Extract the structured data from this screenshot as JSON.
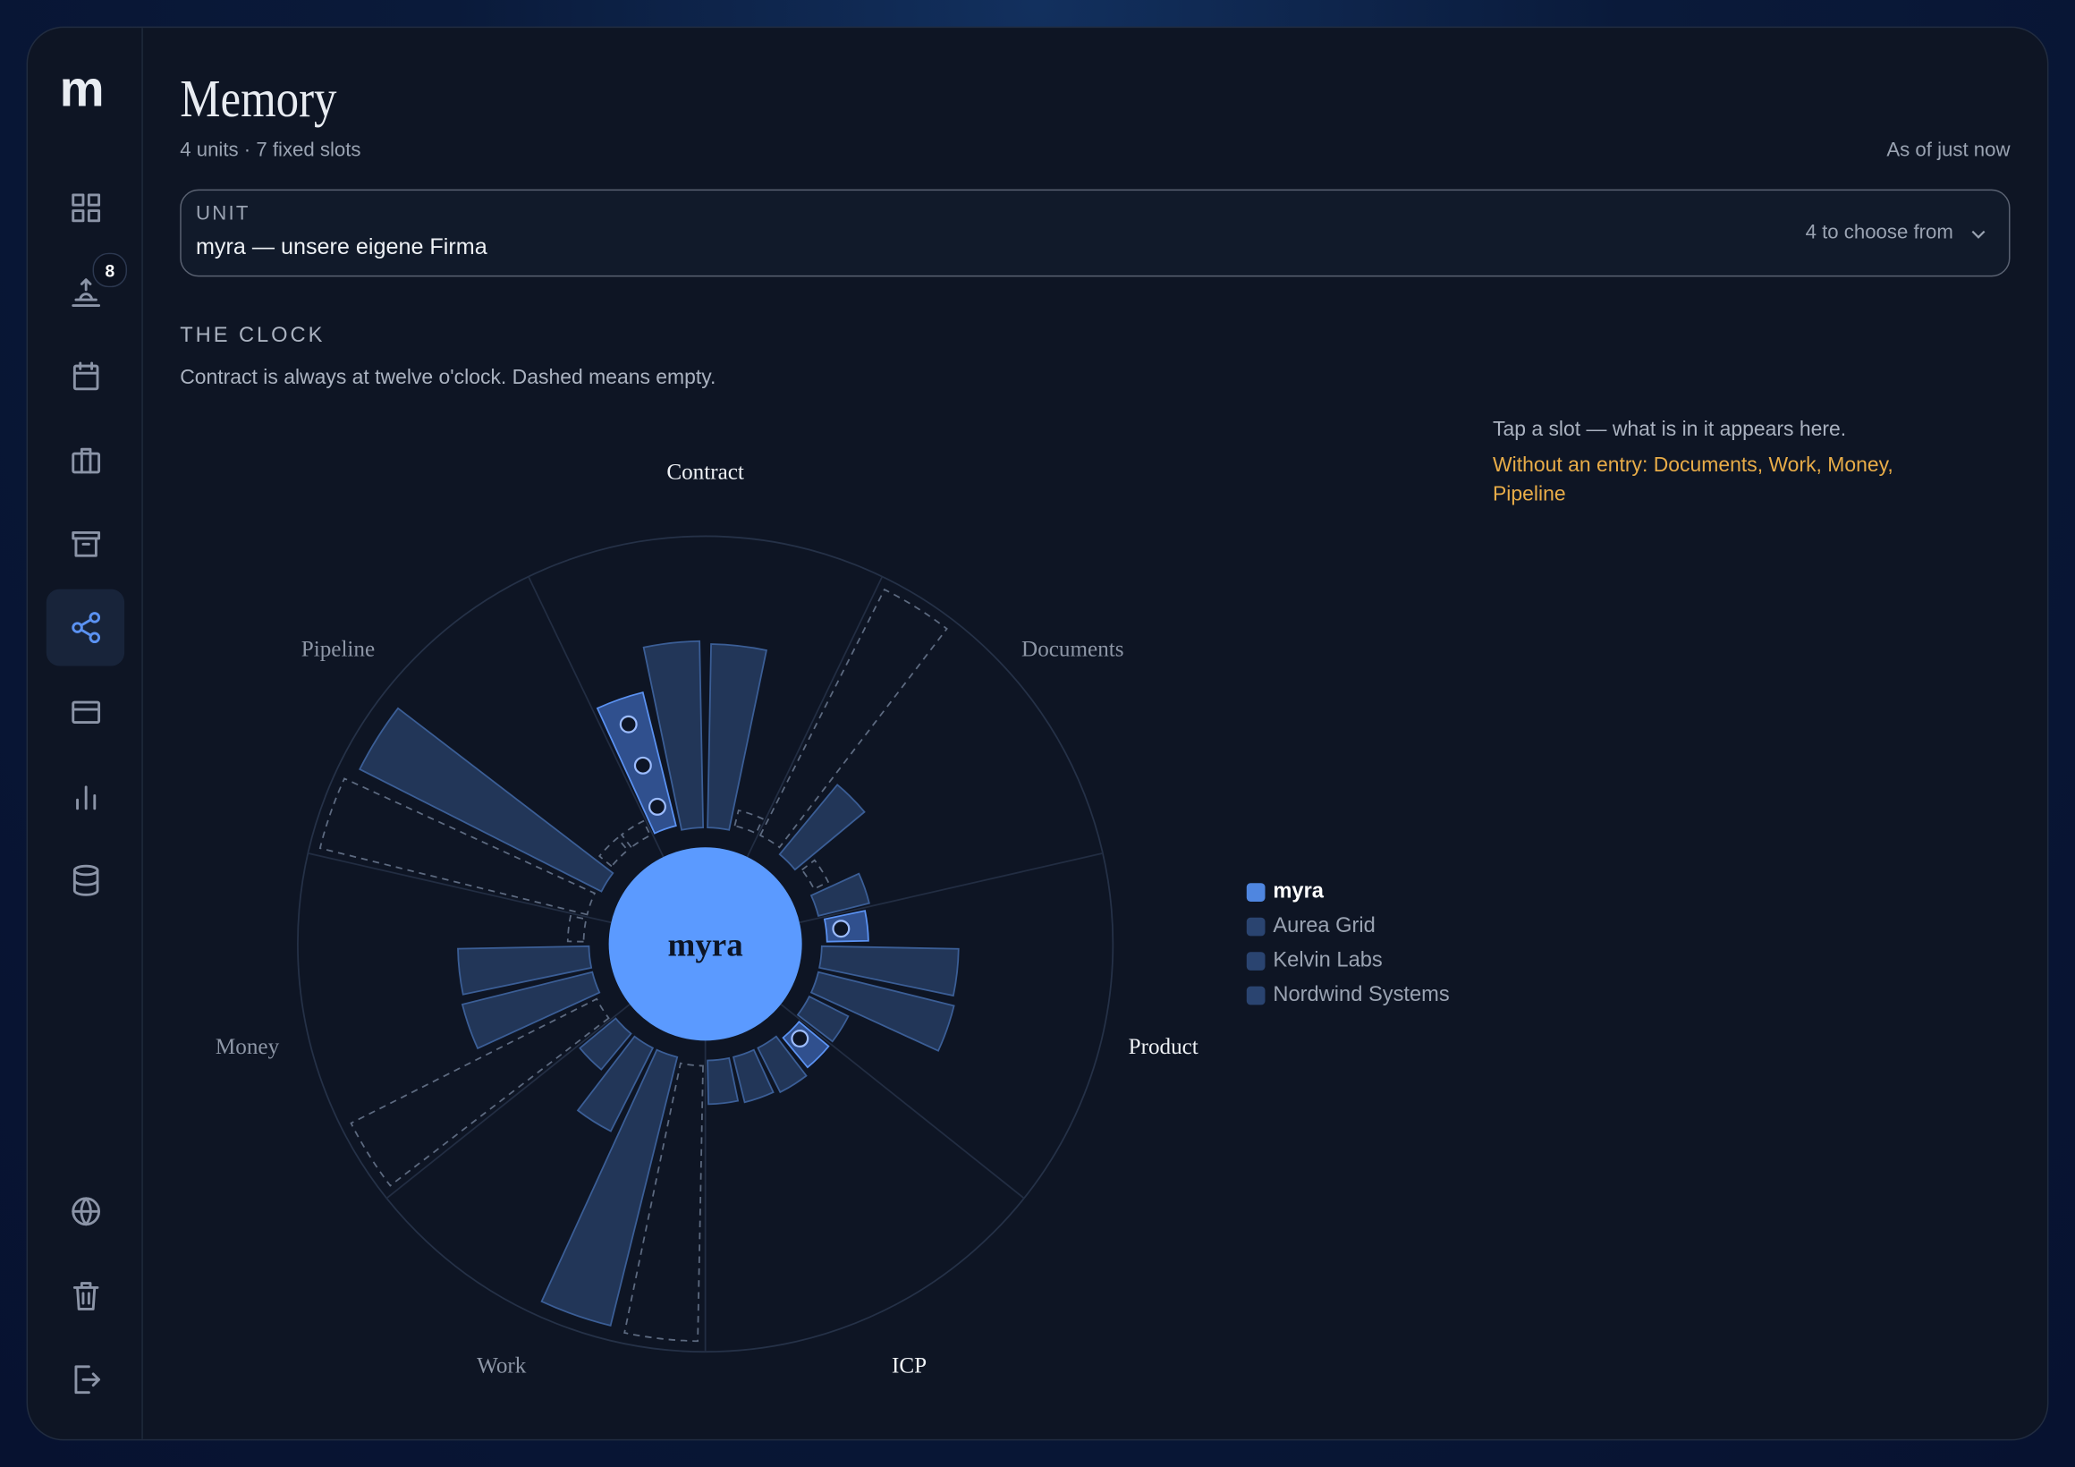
{
  "sidebar": {
    "logo": "m",
    "badge": 8
  },
  "header": {
    "title": "Memory",
    "subtitle": "4 units · 7 fixed slots",
    "timestamp": "As of just now"
  },
  "unit_select": {
    "label": "UNIT",
    "value": "myra — unsere eigene Firma",
    "hint": "4 to choose from"
  },
  "section": {
    "title": "THE CLOCK",
    "description": "Contract is always at twelve o'clock. Dashed means empty."
  },
  "detail": {
    "hint": "Tap a slot — what is in it appears here.",
    "warning": "Without an entry: Documents, Work, Money, Pipeline"
  },
  "chart_data": {
    "type": "polar-bar",
    "categories": [
      "Contract",
      "Documents",
      "Product",
      "ICP",
      "Work",
      "Money",
      "Pipeline"
    ],
    "ylim": [
      0,
      100
    ],
    "series": [
      {
        "name": "myra",
        "color": "#4f86e0",
        "values": [
          49,
          null,
          16,
          15,
          null,
          null,
          null
        ],
        "entries": [
          3,
          null,
          1,
          1,
          null,
          null,
          null
        ]
      },
      {
        "name": "Aurea Grid",
        "color": "#2a4470",
        "values": [
          64,
          31,
          47,
          17,
          95,
          46,
          93
        ]
      },
      {
        "name": "Kelvin Labs",
        "color": "#2a4470",
        "values": [
          63,
          null,
          48,
          16,
          32,
          45,
          null
        ]
      },
      {
        "name": "Nordwind Systems",
        "color": "#2a4470",
        "values": [
          null,
          18,
          15,
          15,
          16,
          null,
          null
        ]
      }
    ]
  }
}
